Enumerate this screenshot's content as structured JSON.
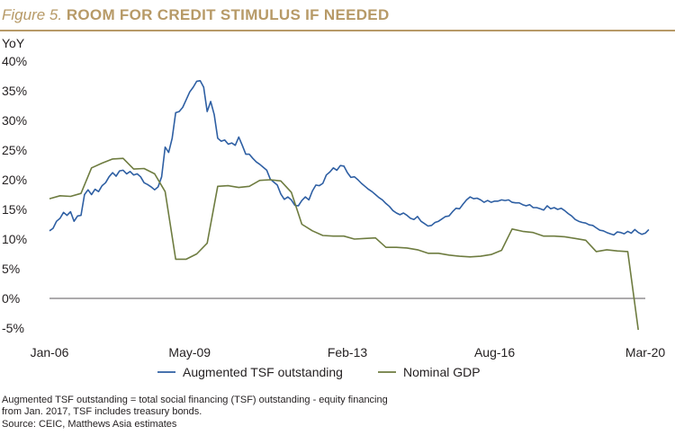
{
  "figure": {
    "prefix": "Figure 5.",
    "title": "ROOM FOR CREDIT STIMULUS IF NEEDED",
    "accent_color": "#b79a67"
  },
  "footnotes": [
    "Augmented TSF outstanding = total social financing (TSF) outstanding - equity financing",
    "from Jan. 2017, TSF includes treasury bonds.",
    "Source: CEIC, Matthews Asia estimates"
  ],
  "chart_data": {
    "type": "line",
    "ylabel": "YoY",
    "xlabel": "",
    "ylim": [
      -5,
      40
    ],
    "yticks": [
      "40%",
      "35%",
      "30%",
      "25%",
      "20%",
      "15%",
      "10%",
      "5%",
      "0%",
      "-5%"
    ],
    "ytick_values": [
      40,
      35,
      30,
      25,
      20,
      15,
      10,
      5,
      0,
      -5
    ],
    "xlim": [
      "2006-01",
      "2020-03"
    ],
    "xticks": [
      "Jan-06",
      "May-09",
      "Feb-13",
      "Aug-16",
      "Mar-20"
    ],
    "xtick_values": [
      "2006-01",
      "2009-05",
      "2013-02",
      "2016-08",
      "2020-03"
    ],
    "grid": false,
    "zero_line": true,
    "legend_position": "bottom",
    "series": [
      {
        "name": "Augmented TSF outstanding",
        "color": "#2e5fa3",
        "points": [
          [
            "2006-01",
            11.4
          ],
          [
            "2006-02",
            11.8
          ],
          [
            "2006-03",
            13.0
          ],
          [
            "2006-04",
            13.5
          ],
          [
            "2006-05",
            14.5
          ],
          [
            "2006-06",
            14.0
          ],
          [
            "2006-07",
            14.6
          ],
          [
            "2006-08",
            13.0
          ],
          [
            "2006-09",
            13.9
          ],
          [
            "2006-10",
            14.0
          ],
          [
            "2006-11",
            17.5
          ],
          [
            "2006-12",
            18.3
          ],
          [
            "2007-01",
            17.5
          ],
          [
            "2007-02",
            18.4
          ],
          [
            "2007-03",
            18.0
          ],
          [
            "2007-04",
            19.0
          ],
          [
            "2007-05",
            19.5
          ],
          [
            "2007-06",
            20.5
          ],
          [
            "2007-07",
            21.2
          ],
          [
            "2007-08",
            20.6
          ],
          [
            "2007-09",
            21.5
          ],
          [
            "2007-10",
            21.6
          ],
          [
            "2007-11",
            21.0
          ],
          [
            "2007-12",
            21.4
          ],
          [
            "2008-01",
            20.8
          ],
          [
            "2008-02",
            21.0
          ],
          [
            "2008-03",
            20.5
          ],
          [
            "2008-04",
            19.5
          ],
          [
            "2008-05",
            19.2
          ],
          [
            "2008-06",
            18.8
          ],
          [
            "2008-07",
            18.3
          ],
          [
            "2008-08",
            18.8
          ],
          [
            "2008-09",
            20.5
          ],
          [
            "2008-10",
            25.5
          ],
          [
            "2008-11",
            24.6
          ],
          [
            "2008-12",
            27.0
          ],
          [
            "2009-01",
            31.3
          ],
          [
            "2009-02",
            31.5
          ],
          [
            "2009-03",
            32.2
          ],
          [
            "2009-04",
            33.5
          ],
          [
            "2009-05",
            34.8
          ],
          [
            "2009-06",
            35.6
          ],
          [
            "2009-07",
            36.6
          ],
          [
            "2009-08",
            36.7
          ],
          [
            "2009-09",
            35.6
          ],
          [
            "2009-10",
            31.5
          ],
          [
            "2009-11",
            33.2
          ],
          [
            "2009-12",
            31.0
          ],
          [
            "2010-01",
            27.0
          ],
          [
            "2010-02",
            26.5
          ],
          [
            "2010-03",
            26.7
          ],
          [
            "2010-04",
            26.0
          ],
          [
            "2010-05",
            26.2
          ],
          [
            "2010-06",
            25.8
          ],
          [
            "2010-07",
            27.2
          ],
          [
            "2010-08",
            25.8
          ],
          [
            "2010-09",
            24.3
          ],
          [
            "2010-10",
            24.3
          ],
          [
            "2010-11",
            23.6
          ],
          [
            "2010-12",
            23.0
          ],
          [
            "2011-01",
            22.6
          ],
          [
            "2011-02",
            22.1
          ],
          [
            "2011-03",
            21.6
          ],
          [
            "2011-04",
            20.1
          ],
          [
            "2011-05",
            19.6
          ],
          [
            "2011-06",
            19.1
          ],
          [
            "2011-07",
            17.6
          ],
          [
            "2011-08",
            16.7
          ],
          [
            "2011-09",
            17.1
          ],
          [
            "2011-10",
            16.6
          ],
          [
            "2011-11",
            15.7
          ],
          [
            "2011-12",
            15.6
          ],
          [
            "2012-01",
            16.5
          ],
          [
            "2012-02",
            17.1
          ],
          [
            "2012-03",
            16.6
          ],
          [
            "2012-04",
            18.1
          ],
          [
            "2012-05",
            19.1
          ],
          [
            "2012-06",
            19.0
          ],
          [
            "2012-07",
            19.4
          ],
          [
            "2012-08",
            20.8
          ],
          [
            "2012-09",
            21.3
          ],
          [
            "2012-10",
            22.0
          ],
          [
            "2012-11",
            21.6
          ],
          [
            "2012-12",
            22.4
          ],
          [
            "2013-01",
            22.3
          ],
          [
            "2013-02",
            21.2
          ],
          [
            "2013-03",
            20.4
          ],
          [
            "2013-04",
            20.5
          ],
          [
            "2013-05",
            20.0
          ],
          [
            "2013-06",
            19.4
          ],
          [
            "2013-07",
            18.9
          ],
          [
            "2013-08",
            18.4
          ],
          [
            "2013-09",
            18.0
          ],
          [
            "2013-10",
            17.5
          ],
          [
            "2013-11",
            17.0
          ],
          [
            "2013-12",
            16.6
          ],
          [
            "2014-01",
            16.0
          ],
          [
            "2014-02",
            15.5
          ],
          [
            "2014-03",
            14.8
          ],
          [
            "2014-04",
            14.4
          ],
          [
            "2014-05",
            14.1
          ],
          [
            "2014-06",
            14.4
          ],
          [
            "2014-07",
            14.0
          ],
          [
            "2014-08",
            13.5
          ],
          [
            "2014-09",
            13.3
          ],
          [
            "2014-10",
            13.8
          ],
          [
            "2014-11",
            13.0
          ],
          [
            "2014-12",
            12.6
          ],
          [
            "2015-01",
            12.2
          ],
          [
            "2015-02",
            12.3
          ],
          [
            "2015-03",
            12.8
          ],
          [
            "2015-04",
            13.0
          ],
          [
            "2015-05",
            13.4
          ],
          [
            "2015-06",
            13.8
          ],
          [
            "2015-07",
            13.9
          ],
          [
            "2015-08",
            14.6
          ],
          [
            "2015-09",
            15.2
          ],
          [
            "2015-10",
            15.1
          ],
          [
            "2015-11",
            15.9
          ],
          [
            "2015-12",
            16.6
          ],
          [
            "2016-01",
            17.1
          ],
          [
            "2016-02",
            16.8
          ],
          [
            "2016-03",
            16.9
          ],
          [
            "2016-04",
            16.6
          ],
          [
            "2016-05",
            16.2
          ],
          [
            "2016-06",
            16.5
          ],
          [
            "2016-07",
            16.2
          ],
          [
            "2016-08",
            16.4
          ],
          [
            "2016-09",
            16.4
          ],
          [
            "2016-10",
            16.6
          ],
          [
            "2016-11",
            16.5
          ],
          [
            "2016-12",
            16.6
          ],
          [
            "2017-01",
            16.2
          ],
          [
            "2017-02",
            16.1
          ],
          [
            "2017-03",
            16.1
          ],
          [
            "2017-04",
            15.8
          ],
          [
            "2017-05",
            15.6
          ],
          [
            "2017-06",
            15.8
          ],
          [
            "2017-07",
            15.3
          ],
          [
            "2017-08",
            15.3
          ],
          [
            "2017-09",
            15.1
          ],
          [
            "2017-10",
            14.9
          ],
          [
            "2017-11",
            15.6
          ],
          [
            "2017-12",
            15.1
          ],
          [
            "2018-01",
            15.3
          ],
          [
            "2018-02",
            15.0
          ],
          [
            "2018-03",
            15.2
          ],
          [
            "2018-04",
            14.8
          ],
          [
            "2018-05",
            14.3
          ],
          [
            "2018-06",
            13.9
          ],
          [
            "2018-07",
            13.3
          ],
          [
            "2018-08",
            13.0
          ],
          [
            "2018-09",
            12.8
          ],
          [
            "2018-10",
            12.7
          ],
          [
            "2018-11",
            12.4
          ],
          [
            "2018-12",
            12.3
          ],
          [
            "2019-01",
            11.9
          ],
          [
            "2019-02",
            11.5
          ],
          [
            "2019-03",
            11.4
          ],
          [
            "2019-04",
            11.1
          ],
          [
            "2019-05",
            10.9
          ],
          [
            "2019-06",
            10.7
          ],
          [
            "2019-07",
            11.2
          ],
          [
            "2019-08",
            11.1
          ],
          [
            "2019-09",
            10.9
          ],
          [
            "2019-10",
            11.3
          ],
          [
            "2019-11",
            11.0
          ],
          [
            "2019-12",
            11.6
          ],
          [
            "2020-01",
            11.1
          ],
          [
            "2020-02",
            10.8
          ],
          [
            "2020-03",
            11.0
          ],
          [
            "2020-04",
            11.6
          ]
        ]
      },
      {
        "name": "Nominal GDP",
        "color": "#6e7c40",
        "points": [
          [
            "2006-01",
            16.8
          ],
          [
            "2006-04",
            17.3
          ],
          [
            "2006-07",
            17.2
          ],
          [
            "2006-10",
            17.7
          ],
          [
            "2007-01",
            22.0
          ],
          [
            "2007-04",
            22.8
          ],
          [
            "2007-07",
            23.5
          ],
          [
            "2007-10",
            23.6
          ],
          [
            "2008-01",
            21.8
          ],
          [
            "2008-04",
            21.9
          ],
          [
            "2008-07",
            21.0
          ],
          [
            "2008-10",
            18.0
          ],
          [
            "2009-01",
            6.6
          ],
          [
            "2009-04",
            6.6
          ],
          [
            "2009-07",
            7.5
          ],
          [
            "2009-10",
            9.3
          ],
          [
            "2010-01",
            18.9
          ],
          [
            "2010-04",
            19.0
          ],
          [
            "2010-07",
            18.7
          ],
          [
            "2010-10",
            18.9
          ],
          [
            "2011-01",
            19.9
          ],
          [
            "2011-04",
            20.0
          ],
          [
            "2011-07",
            19.8
          ],
          [
            "2011-10",
            17.9
          ],
          [
            "2012-01",
            12.5
          ],
          [
            "2012-04",
            11.4
          ],
          [
            "2012-07",
            10.6
          ],
          [
            "2012-10",
            10.5
          ],
          [
            "2013-01",
            10.5
          ],
          [
            "2013-04",
            10.0
          ],
          [
            "2013-07",
            10.1
          ],
          [
            "2013-10",
            10.2
          ],
          [
            "2014-01",
            8.6
          ],
          [
            "2014-04",
            8.6
          ],
          [
            "2014-07",
            8.5
          ],
          [
            "2014-10",
            8.2
          ],
          [
            "2015-01",
            7.6
          ],
          [
            "2015-04",
            7.6
          ],
          [
            "2015-07",
            7.3
          ],
          [
            "2015-10",
            7.1
          ],
          [
            "2016-01",
            7.0
          ],
          [
            "2016-04",
            7.1
          ],
          [
            "2016-07",
            7.4
          ],
          [
            "2016-10",
            8.1
          ],
          [
            "2017-01",
            11.7
          ],
          [
            "2017-04",
            11.3
          ],
          [
            "2017-07",
            11.1
          ],
          [
            "2017-10",
            10.5
          ],
          [
            "2018-01",
            10.5
          ],
          [
            "2018-04",
            10.4
          ],
          [
            "2018-07",
            10.1
          ],
          [
            "2018-10",
            9.8
          ],
          [
            "2019-01",
            7.9
          ],
          [
            "2019-04",
            8.2
          ],
          [
            "2019-07",
            8.0
          ],
          [
            "2019-10",
            7.9
          ],
          [
            "2020-01",
            -5.3
          ]
        ]
      }
    ]
  }
}
